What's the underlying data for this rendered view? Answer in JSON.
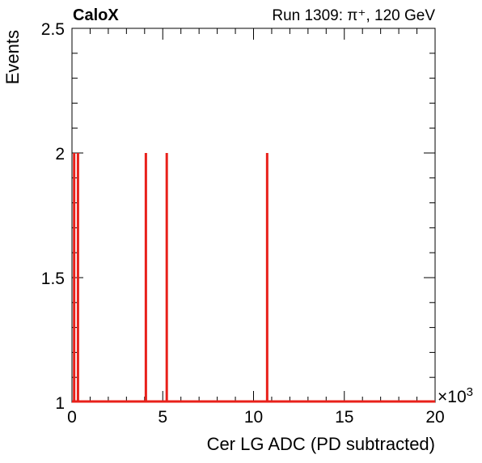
{
  "header": {
    "experiment": "CaloX",
    "run_info": "Run 1309:   π⁺, 120 GeV"
  },
  "chart_data": {
    "type": "histogram",
    "xlabel": "Cer LG ADC (PD subtracted)",
    "ylabel": "Events",
    "x_multiplier": "×10",
    "x_multiplier_exp": "3",
    "xlim": [
      0,
      20
    ],
    "ylim": [
      1,
      2.5
    ],
    "x_ticks": [
      0,
      5,
      10,
      15,
      20
    ],
    "x_tick_labels": [
      "0",
      "5",
      "10",
      "15",
      "20"
    ],
    "y_ticks": [
      1,
      1.5,
      2,
      2.5
    ],
    "y_tick_labels": [
      "1",
      "1.5",
      "2",
      "2.5"
    ],
    "baseline": 1,
    "bins": [
      {
        "x": 0.12,
        "y": 2
      },
      {
        "x": 0.33,
        "y": 2
      },
      {
        "x": 4.07,
        "y": 2
      },
      {
        "x": 5.22,
        "y": 2
      },
      {
        "x": 10.75,
        "y": 2
      }
    ],
    "line_color": "#e8201a"
  }
}
